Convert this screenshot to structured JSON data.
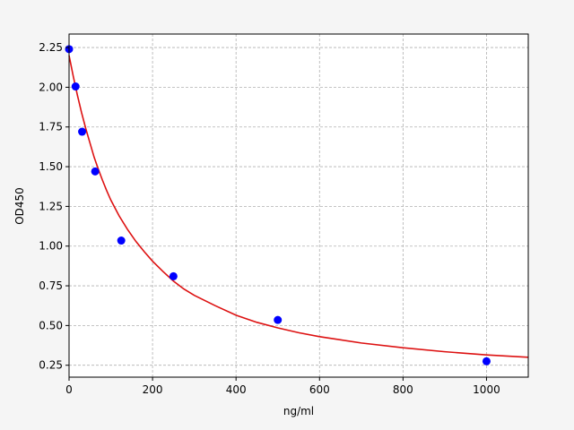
{
  "chart_data": {
    "type": "scatter",
    "title": "",
    "xlabel": "ng/ml",
    "ylabel": "OD450",
    "xlim": [
      0,
      1100
    ],
    "ylim": [
      0.175,
      2.335
    ],
    "xticks": [
      0,
      200,
      400,
      600,
      800,
      1000
    ],
    "xtick_labels": [
      "0",
      "200",
      "400",
      "600",
      "800",
      "1000"
    ],
    "yticks": [
      0.25,
      0.5,
      0.75,
      1.0,
      1.25,
      1.5,
      1.75,
      2.0,
      2.25
    ],
    "ytick_labels": [
      "0.25",
      "0.50",
      "0.75",
      "1.00",
      "1.25",
      "1.50",
      "1.75",
      "2.00",
      "2.25"
    ],
    "grid": true,
    "legend": "none",
    "points": {
      "color": "#0000ff",
      "x": [
        0,
        15.6,
        31.25,
        62.5,
        125,
        250,
        500,
        1000
      ],
      "y": [
        2.24,
        2.005,
        1.72,
        1.47,
        1.035,
        0.81,
        0.535,
        0.275
      ]
    },
    "fit_curve": {
      "color": "#dd1111",
      "x": [
        0,
        10,
        20,
        30,
        40,
        50,
        60,
        70,
        80,
        90,
        100,
        120,
        140,
        160,
        180,
        200,
        225,
        250,
        275,
        300,
        350,
        400,
        450,
        500,
        550,
        600,
        650,
        700,
        800,
        900,
        1000,
        1100
      ],
      "y": [
        2.2,
        2.07,
        1.95,
        1.84,
        1.74,
        1.65,
        1.56,
        1.485,
        1.415,
        1.35,
        1.29,
        1.19,
        1.105,
        1.03,
        0.965,
        0.905,
        0.84,
        0.78,
        0.73,
        0.69,
        0.625,
        0.565,
        0.52,
        0.485,
        0.455,
        0.43,
        0.41,
        0.39,
        0.36,
        0.335,
        0.315,
        0.3
      ]
    }
  }
}
